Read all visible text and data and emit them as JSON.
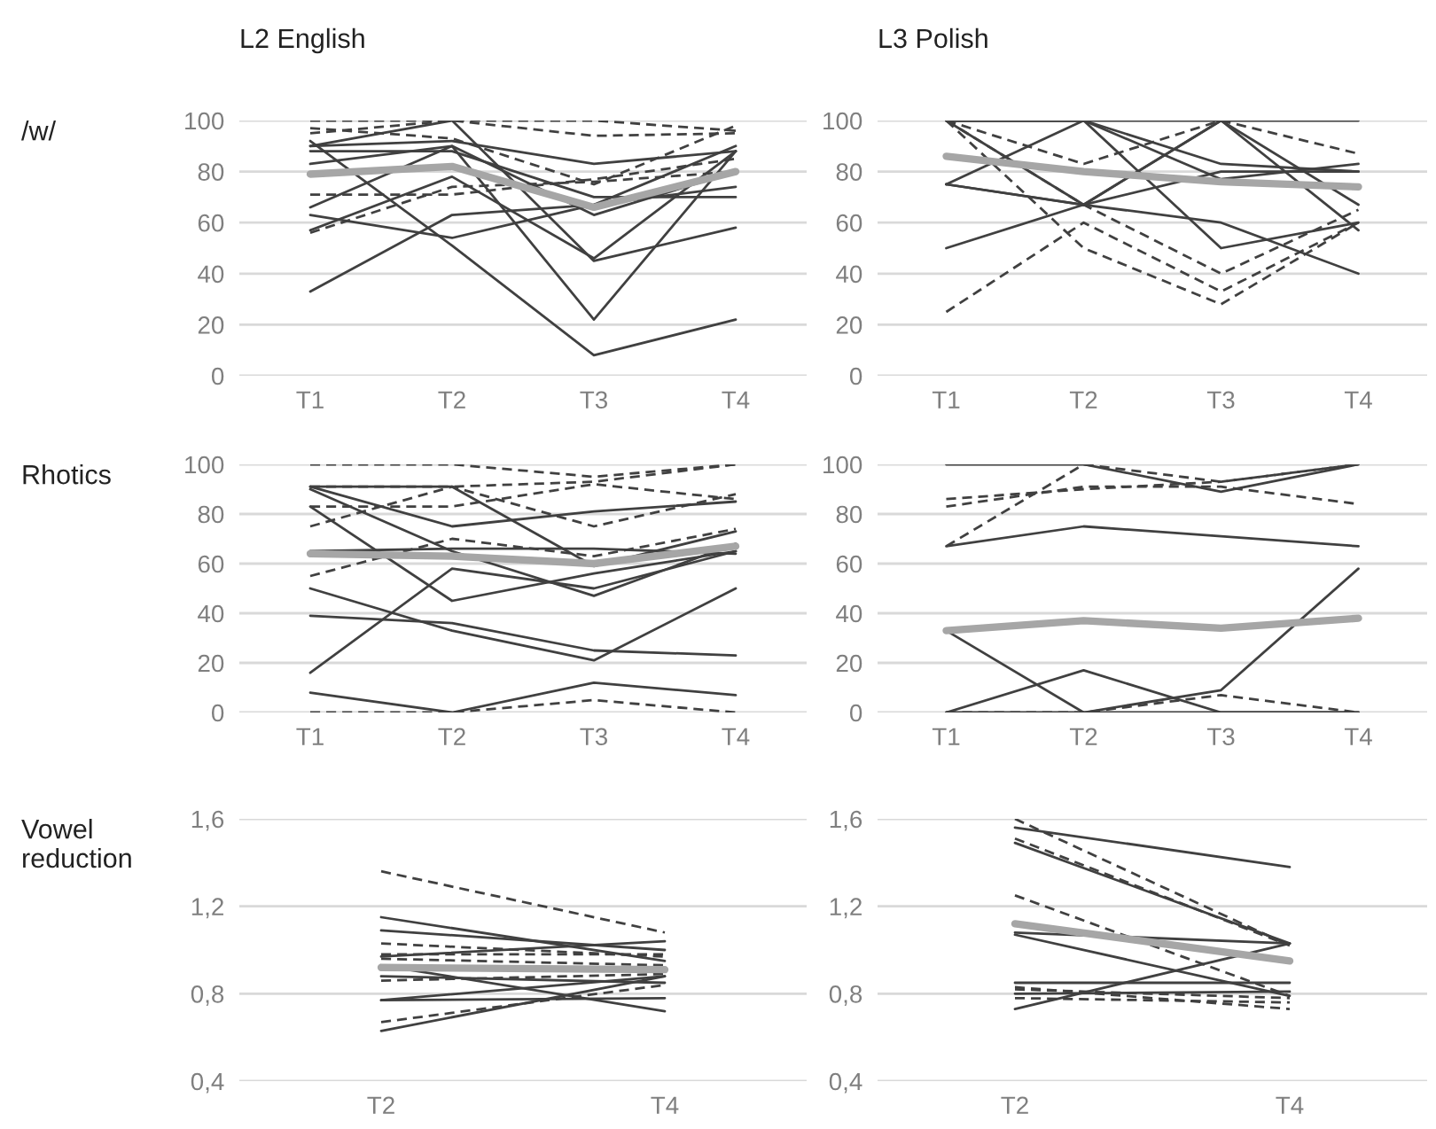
{
  "chart_data": [
    {
      "type": "line",
      "title": "L2 English",
      "ylabel": "/w/",
      "categories": [
        "T1",
        "T2",
        "T3",
        "T4"
      ],
      "ylim": [
        0,
        100
      ],
      "yticks": [
        0,
        20,
        40,
        60,
        80,
        100
      ],
      "grid": "y",
      "series": [
        {
          "color": "#404040",
          "values": [
            33,
            63,
            67,
            90
          ]
        },
        {
          "color": "#404040",
          "values": [
            92,
            51,
            8,
            22
          ]
        },
        {
          "color": "#404040",
          "values": [
            63,
            54,
            67,
            74
          ]
        },
        {
          "color": "#404040",
          "values": [
            90,
            100,
            45,
            58
          ]
        },
        {
          "color": "#404040",
          "values": [
            83,
            90,
            22,
            88
          ]
        },
        {
          "color": "#404040",
          "values": [
            66,
            90,
            63,
            80
          ]
        },
        {
          "color": "#404040",
          "values": [
            90,
            92,
            83,
            88
          ]
        },
        {
          "color": "#404040",
          "values": [
            88,
            88,
            70,
            70
          ]
        },
        {
          "color": "#404040",
          "values": [
            57,
            78,
            46,
            88
          ]
        },
        {
          "color": "#404040",
          "values": [
            100,
            100,
            100,
            96
          ],
          "line_style": "dashed"
        },
        {
          "color": "#404040",
          "values": [
            95,
            100,
            94,
            95
          ],
          "line_style": "dashed"
        },
        {
          "color": "#404040",
          "values": [
            71,
            71,
            77,
            85
          ],
          "line_style": "dashed"
        },
        {
          "color": "#404040",
          "values": [
            56,
            74,
            76,
            80
          ],
          "line_style": "dashed"
        },
        {
          "color": "#404040",
          "values": [
            97,
            93,
            75,
            98
          ],
          "line_style": "dashed"
        },
        {
          "color": "#a6a6a6",
          "values": [
            79,
            82,
            66,
            80
          ]
        }
      ]
    },
    {
      "type": "line",
      "title": "L3 Polish",
      "categories": [
        "T1",
        "T2",
        "T3",
        "T4"
      ],
      "ylim": [
        0,
        100
      ],
      "yticks": [
        0,
        20,
        40,
        60,
        80,
        100
      ],
      "grid": "y",
      "series": [
        {
          "color": "#404040",
          "values": [
            100,
            100,
            100,
            100
          ]
        },
        {
          "color": "#404040",
          "values": [
            75,
            67,
            100,
            67
          ]
        },
        {
          "color": "#404040",
          "values": [
            50,
            67,
            80,
            80
          ]
        },
        {
          "color": "#404040",
          "values": [
            100,
            67,
            60,
            40
          ]
        },
        {
          "color": "#404040",
          "values": [
            75,
            100,
            50,
            60
          ]
        },
        {
          "color": "#404040",
          "values": [
            100,
            100,
            83,
            80
          ]
        },
        {
          "color": "#404040",
          "values": [
            100,
            100,
            77,
            83
          ]
        },
        {
          "color": "#404040",
          "values": [
            75,
            67,
            100,
            57
          ]
        },
        {
          "color": "#404040",
          "values": [
            25,
            60,
            33,
            60
          ],
          "line_style": "dashed"
        },
        {
          "color": "#404040",
          "values": [
            100,
            50,
            28,
            60
          ],
          "line_style": "dashed"
        },
        {
          "color": "#404040",
          "values": [
            100,
            67,
            40,
            65
          ],
          "line_style": "dashed"
        },
        {
          "color": "#404040",
          "values": [
            100,
            83,
            100,
            87
          ],
          "line_style": "dashed"
        },
        {
          "color": "#a6a6a6",
          "values": [
            86,
            80,
            76,
            74
          ]
        }
      ]
    },
    {
      "type": "line",
      "ylabel": "Rhotics",
      "categories": [
        "T1",
        "T2",
        "T3",
        "T4"
      ],
      "ylim": [
        0,
        100
      ],
      "yticks": [
        0,
        20,
        40,
        60,
        80,
        100
      ],
      "grid": "y",
      "series": [
        {
          "color": "#404040",
          "values": [
            91,
            75,
            81,
            85
          ]
        },
        {
          "color": "#404040",
          "values": [
            91,
            91,
            59,
            73
          ]
        },
        {
          "color": "#404040",
          "values": [
            83,
            45,
            56,
            65
          ]
        },
        {
          "color": "#404040",
          "values": [
            90,
            65,
            47,
            68
          ]
        },
        {
          "color": "#404040",
          "values": [
            50,
            33,
            21,
            50
          ]
        },
        {
          "color": "#404040",
          "values": [
            39,
            36,
            25,
            23
          ]
        },
        {
          "color": "#404040",
          "values": [
            16,
            58,
            50,
            65
          ]
        },
        {
          "color": "#404040",
          "values": [
            8,
            0,
            12,
            7
          ]
        },
        {
          "color": "#404040",
          "values": [
            65,
            66,
            66,
            64
          ]
        },
        {
          "color": "#404040",
          "values": [
            100,
            100,
            95,
            100
          ],
          "line_style": "dashed"
        },
        {
          "color": "#404040",
          "values": [
            91,
            91,
            93,
            100
          ],
          "line_style": "dashed"
        },
        {
          "color": "#404040",
          "values": [
            75,
            91,
            75,
            88
          ],
          "line_style": "dashed"
        },
        {
          "color": "#404040",
          "values": [
            83,
            83,
            92,
            86
          ],
          "line_style": "dashed"
        },
        {
          "color": "#404040",
          "values": [
            55,
            70,
            63,
            74
          ],
          "line_style": "dashed"
        },
        {
          "color": "#404040",
          "values": [
            0,
            0,
            5,
            0
          ],
          "line_style": "dashed"
        },
        {
          "color": "#a6a6a6",
          "values": [
            64,
            63,
            60,
            67
          ]
        }
      ]
    },
    {
      "type": "line",
      "categories": [
        "T1",
        "T2",
        "T3",
        "T4"
      ],
      "ylim": [
        0,
        100
      ],
      "yticks": [
        0,
        20,
        40,
        60,
        80,
        100
      ],
      "grid": "y",
      "series": [
        {
          "color": "#404040",
          "values": [
            100,
            100,
            89,
            100
          ]
        },
        {
          "color": "#404040",
          "values": [
            67,
            75,
            71,
            67
          ]
        },
        {
          "color": "#404040",
          "values": [
            33,
            0,
            0,
            0
          ]
        },
        {
          "color": "#404040",
          "values": [
            0,
            17,
            0,
            0
          ]
        },
        {
          "color": "#404040",
          "values": [
            0,
            0,
            9,
            58
          ]
        },
        {
          "color": "#404040",
          "values": [
            0,
            0,
            7,
            0
          ],
          "line_style": "dashed"
        },
        {
          "color": "#404040",
          "values": [
            86,
            90,
            93,
            100
          ],
          "line_style": "dashed"
        },
        {
          "color": "#404040",
          "values": [
            83,
            91,
            91,
            84
          ],
          "line_style": "dashed"
        },
        {
          "color": "#404040",
          "values": [
            67,
            100,
            93,
            100
          ],
          "line_style": "dashed"
        },
        {
          "color": "#a6a6a6",
          "values": [
            33,
            37,
            34,
            38
          ]
        }
      ]
    },
    {
      "type": "line",
      "ylabel": "Vowel reduction",
      "categories": [
        "T2",
        "T4"
      ],
      "ylim": [
        0.4,
        1.6
      ],
      "yticks": [
        {
          "value": 0.4,
          "label": "0,4"
        },
        {
          "value": 0.8,
          "label": "0,8"
        },
        {
          "value": 1.2,
          "label": "1,2"
        },
        {
          "value": 1.6,
          "label": "1,6"
        }
      ],
      "grid": "y",
      "series": [
        {
          "color": "#404040",
          "values": [
            1.15,
            0.95
          ]
        },
        {
          "color": "#404040",
          "values": [
            1.09,
            1.0
          ]
        },
        {
          "color": "#404040",
          "values": [
            0.93,
            0.72
          ]
        },
        {
          "color": "#404040",
          "values": [
            0.63,
            0.88
          ]
        },
        {
          "color": "#404040",
          "values": [
            0.77,
            0.78
          ]
        },
        {
          "color": "#404040",
          "values": [
            0.77,
            0.88
          ]
        },
        {
          "color": "#404040",
          "values": [
            0.97,
            1.04
          ]
        },
        {
          "color": "#404040",
          "values": [
            0.88,
            0.85
          ]
        },
        {
          "color": "#404040",
          "values": [
            1.36,
            1.08
          ],
          "line_style": "dashed"
        },
        {
          "color": "#404040",
          "values": [
            1.03,
            0.97
          ],
          "line_style": "dashed"
        },
        {
          "color": "#404040",
          "values": [
            0.96,
            0.93
          ],
          "line_style": "dashed"
        },
        {
          "color": "#404040",
          "values": [
            0.86,
            0.89
          ],
          "line_style": "dashed"
        },
        {
          "color": "#404040",
          "values": [
            0.67,
            0.84
          ],
          "line_style": "dashed"
        },
        {
          "color": "#404040",
          "values": [
            0.98,
            0.98
          ],
          "line_style": "dashed"
        },
        {
          "color": "#a6a6a6",
          "values": [
            0.92,
            0.91
          ]
        }
      ]
    },
    {
      "type": "line",
      "categories": [
        "T2",
        "T4"
      ],
      "ylim": [
        0.4,
        1.6
      ],
      "yticks": [
        {
          "value": 0.4,
          "label": "0,4"
        },
        {
          "value": 0.8,
          "label": "0,8"
        },
        {
          "value": 1.2,
          "label": "1,2"
        },
        {
          "value": 1.6,
          "label": "1,6"
        }
      ],
      "grid": "y",
      "series": [
        {
          "color": "#404040",
          "values": [
            1.56,
            1.38
          ]
        },
        {
          "color": "#404040",
          "values": [
            1.49,
            1.03
          ]
        },
        {
          "color": "#404040",
          "values": [
            1.08,
            1.03
          ]
        },
        {
          "color": "#404040",
          "values": [
            1.07,
            0.79
          ]
        },
        {
          "color": "#404040",
          "values": [
            0.73,
            1.03
          ]
        },
        {
          "color": "#404040",
          "values": [
            0.85,
            0.85
          ]
        },
        {
          "color": "#404040",
          "values": [
            0.8,
            0.81
          ]
        },
        {
          "color": "#404040",
          "values": [
            1.6,
            1.02
          ],
          "line_style": "dashed"
        },
        {
          "color": "#404040",
          "values": [
            1.51,
            1.02
          ],
          "line_style": "dashed"
        },
        {
          "color": "#404040",
          "values": [
            1.25,
            0.79
          ],
          "line_style": "dashed"
        },
        {
          "color": "#404040",
          "values": [
            0.83,
            0.73
          ],
          "line_style": "dashed"
        },
        {
          "color": "#404040",
          "values": [
            0.78,
            0.76
          ],
          "line_style": "dashed"
        },
        {
          "color": "#404040",
          "values": [
            0.82,
            0.78
          ],
          "line_style": "dashed"
        },
        {
          "color": "#a6a6a6",
          "values": [
            1.12,
            0.95
          ]
        }
      ]
    }
  ]
}
